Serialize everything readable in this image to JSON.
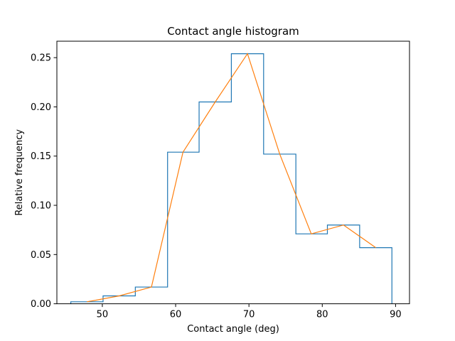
{
  "chart_data": {
    "type": "histogram",
    "title": "Contact angle histogram",
    "xlabel": "Contact angle (deg)",
    "ylabel": "Relative frequency",
    "xlim": [
      43.8,
      91.9
    ],
    "ylim": [
      0,
      0.2667
    ],
    "grid": false,
    "xticks": [
      50,
      60,
      70,
      80,
      90
    ],
    "yticks": [
      0.0,
      0.05,
      0.1,
      0.15,
      0.2,
      0.25
    ],
    "xtick_labels": [
      "50",
      "60",
      "70",
      "80",
      "90"
    ],
    "ytick_labels": [
      "0.00",
      "0.05",
      "0.10",
      "0.15",
      "0.20",
      "0.25"
    ],
    "colors": {
      "histogram": "#1f77b4",
      "line": "#ff7f0e"
    },
    "series": [
      {
        "type": "step-histogram",
        "bin_edges": [
          45.7,
          50.1,
          54.5,
          58.9,
          63.2,
          67.6,
          72.0,
          76.4,
          80.7,
          85.1,
          89.5
        ],
        "values": [
          0.002,
          0.008,
          0.017,
          0.154,
          0.205,
          0.254,
          0.152,
          0.071,
          0.08,
          0.057
        ]
      },
      {
        "type": "line",
        "x": [
          47.9,
          52.3,
          56.7,
          61.0,
          65.4,
          69.8,
          74.2,
          78.5,
          82.9,
          87.3
        ],
        "y": [
          0.002,
          0.008,
          0.017,
          0.154,
          0.205,
          0.254,
          0.152,
          0.071,
          0.08,
          0.057
        ]
      }
    ]
  }
}
